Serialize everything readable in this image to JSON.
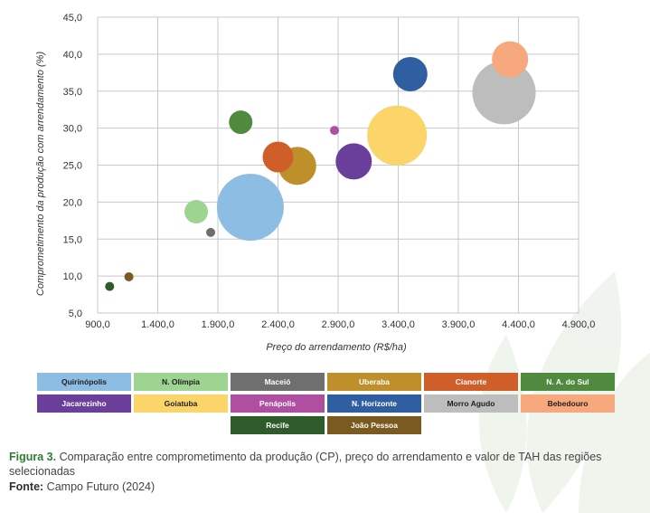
{
  "caption": {
    "figure_label": "Figura 3.",
    "text": "Comparação entre comprometimento da produção (CP), preço do arrendamento e valor de TAH das regiões selecionadas",
    "source_label": "Fonte:",
    "source_text": "Campo Futuro (2024)"
  },
  "chart_data": {
    "type": "scatter",
    "title": "",
    "xlabel": "Preço do arrendamento (R$/ha)",
    "ylabel": "Comprometimento da produção com arrendamento (%)",
    "xlim": [
      900,
      4900
    ],
    "ylim": [
      5,
      45
    ],
    "x_ticks": [
      900,
      1400,
      1900,
      2400,
      2900,
      3400,
      3900,
      4400,
      4900
    ],
    "y_ticks": [
      5,
      10,
      15,
      20,
      25,
      30,
      35,
      40,
      45
    ],
    "x_tick_labels": [
      "900,0",
      "1.400,0",
      "1.900,0",
      "2.400,0",
      "2.900,0",
      "3.400,0",
      "3.900,0",
      "4.400,0",
      "4.900,0"
    ],
    "y_tick_labels": [
      "5,0",
      "10,0",
      "15,0",
      "20,0",
      "25,0",
      "30,0",
      "35,0",
      "40,0",
      "45,0"
    ],
    "grid": true,
    "legend_position": "bottom",
    "series": [
      {
        "name": "Quirinópolis",
        "color": "#8dbde3",
        "x": 2170,
        "y": 19.3,
        "size": 37
      },
      {
        "name": "N. Olímpia",
        "color": "#9ed492",
        "x": 1720,
        "y": 18.7,
        "size": 13
      },
      {
        "name": "Maceió",
        "color": "#6f6f6f",
        "x": 1840,
        "y": 15.9,
        "size": 5
      },
      {
        "name": "Uberaba",
        "color": "#bf8f2b",
        "x": 2560,
        "y": 24.9,
        "size": 21
      },
      {
        "name": "Cianorte",
        "color": "#cf5e28",
        "x": 2400,
        "y": 26.1,
        "size": 17
      },
      {
        "name": "N. A. do Sul",
        "color": "#4f8a3e",
        "x": 2090,
        "y": 30.8,
        "size": 13
      },
      {
        "name": "Jacarezinho",
        "color": "#6a3f9c",
        "x": 3030,
        "y": 25.5,
        "size": 20
      },
      {
        "name": "Goiatuba",
        "color": "#fbd46a",
        "x": 3390,
        "y": 29.0,
        "size": 33
      },
      {
        "name": "Penápolis",
        "color": "#b04fa2",
        "x": 2870,
        "y": 29.7,
        "size": 5
      },
      {
        "name": "N. Horizonte",
        "color": "#2f5fa1",
        "x": 3500,
        "y": 37.3,
        "size": 19
      },
      {
        "name": "Morro Agudo",
        "color": "#bdbdbd",
        "x": 4280,
        "y": 34.8,
        "size": 35
      },
      {
        "name": "Bebedouro",
        "color": "#f7a87d",
        "x": 4330,
        "y": 39.3,
        "size": 20
      },
      {
        "name": "Recife",
        "color": "#2d5b29",
        "x": 1000,
        "y": 8.6,
        "size": 5
      },
      {
        "name": "João Pessoa",
        "color": "#7a5a1e",
        "x": 1160,
        "y": 9.9,
        "size": 5
      }
    ]
  }
}
